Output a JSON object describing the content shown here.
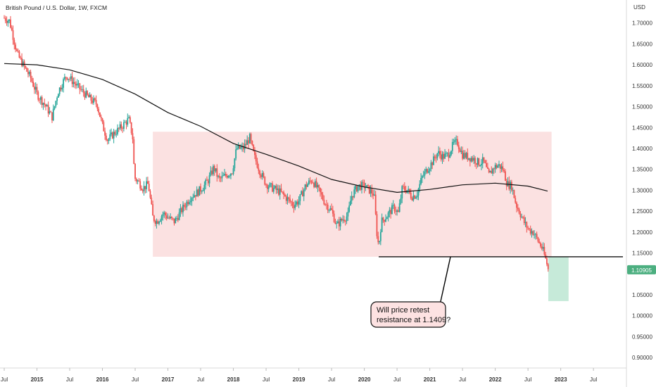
{
  "header": {
    "title": "British Pound / U.S. Dollar, 1W, FXCM",
    "currency": "USD"
  },
  "price_label": "1.10905",
  "annotation": {
    "line1": "Will price retest",
    "line2": "resistance at 1.1409?"
  },
  "colors": {
    "up": "#26a69a",
    "down": "#ef5350",
    "range_box": "#fbe1e1",
    "target_box": "#c6ead9",
    "price_tag": "#4caf80",
    "ma_line": "#111111"
  },
  "chart_data": {
    "type": "candlestick",
    "title": "British Pound / U.S. Dollar, 1W, FXCM",
    "ylabel": "USD",
    "ylim": [
      0.875,
      1.755
    ],
    "xlim": [
      2014.5,
      2023.95
    ],
    "y_ticks": [
      {
        "v": 1.7,
        "label": "1.70000"
      },
      {
        "v": 1.65,
        "label": "1.65000"
      },
      {
        "v": 1.6,
        "label": "1.60000"
      },
      {
        "v": 1.55,
        "label": "1.55000"
      },
      {
        "v": 1.5,
        "label": "1.50000"
      },
      {
        "v": 1.45,
        "label": "1.45000"
      },
      {
        "v": 1.4,
        "label": "1.40000"
      },
      {
        "v": 1.35,
        "label": "1.35000"
      },
      {
        "v": 1.3,
        "label": "1.30000"
      },
      {
        "v": 1.25,
        "label": "1.25000"
      },
      {
        "v": 1.2,
        "label": "1.20000"
      },
      {
        "v": 1.15,
        "label": "1.15000"
      },
      {
        "v": 1.05,
        "label": "1.05000"
      },
      {
        "v": 1.0,
        "label": "1.00000"
      },
      {
        "v": 0.95,
        "label": "0.95000"
      },
      {
        "v": 0.9,
        "label": "0.90000"
      }
    ],
    "x_ticks": [
      {
        "t": 2014.5,
        "label": "Jul"
      },
      {
        "t": 2015.0,
        "label": "2015"
      },
      {
        "t": 2015.5,
        "label": "Jul"
      },
      {
        "t": 2016.0,
        "label": "2016"
      },
      {
        "t": 2016.5,
        "label": "Jul"
      },
      {
        "t": 2017.0,
        "label": "2017"
      },
      {
        "t": 2017.5,
        "label": "Jul"
      },
      {
        "t": 2018.0,
        "label": "2018"
      },
      {
        "t": 2018.5,
        "label": "Jul"
      },
      {
        "t": 2019.0,
        "label": "2019"
      },
      {
        "t": 2019.5,
        "label": "Jul"
      },
      {
        "t": 2020.0,
        "label": "2020"
      },
      {
        "t": 2020.5,
        "label": "Jul"
      },
      {
        "t": 2021.0,
        "label": "2021"
      },
      {
        "t": 2021.5,
        "label": "Jul"
      },
      {
        "t": 2022.0,
        "label": "2022"
      },
      {
        "t": 2022.5,
        "label": "Jul"
      },
      {
        "t": 2023.0,
        "label": "2023"
      },
      {
        "t": 2023.5,
        "label": "Jul"
      }
    ],
    "price_path": [
      [
        2014.5,
        1.712
      ],
      [
        2014.58,
        1.705
      ],
      [
        2014.7,
        1.625
      ],
      [
        2014.8,
        1.597
      ],
      [
        2014.9,
        1.57
      ],
      [
        2015.0,
        1.53
      ],
      [
        2015.12,
        1.505
      ],
      [
        2015.23,
        1.475
      ],
      [
        2015.32,
        1.535
      ],
      [
        2015.45,
        1.575
      ],
      [
        2015.55,
        1.56
      ],
      [
        2015.67,
        1.54
      ],
      [
        2015.8,
        1.52
      ],
      [
        2015.92,
        1.505
      ],
      [
        2016.0,
        1.455
      ],
      [
        2016.08,
        1.42
      ],
      [
        2016.17,
        1.435
      ],
      [
        2016.28,
        1.45
      ],
      [
        2016.4,
        1.47
      ],
      [
        2016.46,
        1.43
      ],
      [
        2016.49,
        1.33
      ],
      [
        2016.55,
        1.32
      ],
      [
        2016.62,
        1.305
      ],
      [
        2016.7,
        1.315
      ],
      [
        2016.77,
        1.235
      ],
      [
        2016.83,
        1.225
      ],
      [
        2016.93,
        1.245
      ],
      [
        2017.0,
        1.235
      ],
      [
        2017.1,
        1.225
      ],
      [
        2017.22,
        1.255
      ],
      [
        2017.35,
        1.285
      ],
      [
        2017.45,
        1.295
      ],
      [
        2017.55,
        1.31
      ],
      [
        2017.62,
        1.325
      ],
      [
        2017.7,
        1.355
      ],
      [
        2017.78,
        1.325
      ],
      [
        2017.88,
        1.335
      ],
      [
        2017.98,
        1.345
      ],
      [
        2018.05,
        1.4
      ],
      [
        2018.15,
        1.4
      ],
      [
        2018.25,
        1.425
      ],
      [
        2018.32,
        1.38
      ],
      [
        2018.42,
        1.34
      ],
      [
        2018.5,
        1.315
      ],
      [
        2018.6,
        1.305
      ],
      [
        2018.72,
        1.295
      ],
      [
        2018.82,
        1.28
      ],
      [
        2018.92,
        1.265
      ],
      [
        2019.0,
        1.275
      ],
      [
        2019.1,
        1.31
      ],
      [
        2019.2,
        1.325
      ],
      [
        2019.3,
        1.3
      ],
      [
        2019.4,
        1.27
      ],
      [
        2019.5,
        1.25
      ],
      [
        2019.58,
        1.215
      ],
      [
        2019.66,
        1.23
      ],
      [
        2019.75,
        1.24
      ],
      [
        2019.8,
        1.285
      ],
      [
        2019.9,
        1.31
      ],
      [
        2020.0,
        1.31
      ],
      [
        2020.08,
        1.3
      ],
      [
        2020.15,
        1.29
      ],
      [
        2020.19,
        1.2
      ],
      [
        2020.22,
        1.165
      ],
      [
        2020.26,
        1.225
      ],
      [
        2020.35,
        1.24
      ],
      [
        2020.45,
        1.26
      ],
      [
        2020.52,
        1.245
      ],
      [
        2020.58,
        1.305
      ],
      [
        2020.66,
        1.3
      ],
      [
        2020.72,
        1.285
      ],
      [
        2020.8,
        1.29
      ],
      [
        2020.88,
        1.33
      ],
      [
        2020.96,
        1.35
      ],
      [
        2021.05,
        1.37
      ],
      [
        2021.12,
        1.39
      ],
      [
        2021.2,
        1.38
      ],
      [
        2021.28,
        1.385
      ],
      [
        2021.36,
        1.41
      ],
      [
        2021.42,
        1.415
      ],
      [
        2021.5,
        1.385
      ],
      [
        2021.58,
        1.38
      ],
      [
        2021.67,
        1.375
      ],
      [
        2021.75,
        1.365
      ],
      [
        2021.82,
        1.37
      ],
      [
        2021.9,
        1.335
      ],
      [
        2021.98,
        1.355
      ],
      [
        2022.05,
        1.36
      ],
      [
        2022.12,
        1.35
      ],
      [
        2022.18,
        1.315
      ],
      [
        2022.25,
        1.31
      ],
      [
        2022.32,
        1.265
      ],
      [
        2022.38,
        1.245
      ],
      [
        2022.45,
        1.22
      ],
      [
        2022.52,
        1.205
      ],
      [
        2022.58,
        1.2
      ],
      [
        2022.65,
        1.18
      ],
      [
        2022.72,
        1.16
      ],
      [
        2022.78,
        1.13
      ],
      [
        2022.81,
        1.109
      ]
    ],
    "moving_average": [
      [
        2014.5,
        1.603
      ],
      [
        2015.0,
        1.6
      ],
      [
        2015.5,
        1.588
      ],
      [
        2016.0,
        1.565
      ],
      [
        2016.5,
        1.53
      ],
      [
        2017.0,
        1.486
      ],
      [
        2017.5,
        1.453
      ],
      [
        2018.0,
        1.412
      ],
      [
        2018.5,
        1.386
      ],
      [
        2019.0,
        1.358
      ],
      [
        2019.5,
        1.326
      ],
      [
        2020.0,
        1.308
      ],
      [
        2020.5,
        1.295
      ],
      [
        2021.0,
        1.302
      ],
      [
        2021.5,
        1.313
      ],
      [
        2022.0,
        1.317
      ],
      [
        2022.5,
        1.31
      ],
      [
        2022.8,
        1.298
      ]
    ],
    "range_box": {
      "x0": 2016.77,
      "x1": 2022.86,
      "y_top": 1.44,
      "y_bottom": 1.141
    },
    "resistance_line": {
      "x0": 2020.22,
      "x1": 2023.95,
      "y": 1.1409
    },
    "target_box": {
      "x0": 2022.81,
      "x1": 2023.12,
      "y_top": 1.141,
      "y_bottom": 1.035
    },
    "last_price": 1.10905
  }
}
